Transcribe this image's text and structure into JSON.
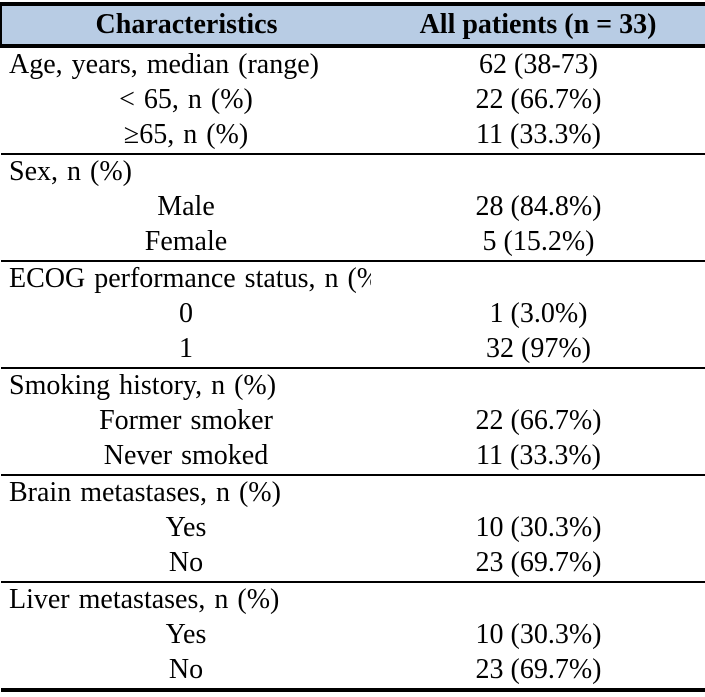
{
  "table": {
    "colors": {
      "header_bg": "#b8cce4",
      "border": "#000000",
      "text": "#000000",
      "background": "#ffffff"
    },
    "header": {
      "col1": "Characteristics",
      "col2": "All patients (n = 33)"
    },
    "sections": [
      {
        "rows": [
          {
            "label": "Age, years, median (range)",
            "value": "62 (38-73)",
            "indent": false
          },
          {
            "label": "< 65, n (%)",
            "value": "22 (66.7%)",
            "indent": true
          },
          {
            "label": "≥65, n (%)",
            "value": "11 (33.3%)",
            "indent": true
          }
        ]
      },
      {
        "rows": [
          {
            "label": "Sex, n (%)",
            "value": "",
            "indent": false
          },
          {
            "label": "Male",
            "value": "28 (84.8%)",
            "indent": true
          },
          {
            "label": "Female",
            "value": "5 (15.2%)",
            "indent": true
          }
        ]
      },
      {
        "rows": [
          {
            "label": "ECOG performance status, n (%)",
            "value": "",
            "indent": false
          },
          {
            "label": "0",
            "value": "1 (3.0%)",
            "indent": true
          },
          {
            "label": "1",
            "value": "32 (97%)",
            "indent": true
          }
        ]
      },
      {
        "rows": [
          {
            "label": "Smoking history, n (%)",
            "value": "",
            "indent": false
          },
          {
            "label": "Former smoker",
            "value": "22 (66.7%)",
            "indent": true
          },
          {
            "label": "Never smoked",
            "value": "11 (33.3%)",
            "indent": true
          }
        ]
      },
      {
        "rows": [
          {
            "label": "Brain metastases, n (%)",
            "value": "",
            "indent": false
          },
          {
            "label": "Yes",
            "value": "10 (30.3%)",
            "indent": true
          },
          {
            "label": "No",
            "value": "23 (69.7%)",
            "indent": true
          }
        ]
      },
      {
        "rows": [
          {
            "label": "Liver metastases, n (%)",
            "value": "",
            "indent": false
          },
          {
            "label": "Yes",
            "value": "10 (30.3%)",
            "indent": true
          },
          {
            "label": "No",
            "value": "23 (69.7%)",
            "indent": true
          }
        ]
      }
    ]
  }
}
